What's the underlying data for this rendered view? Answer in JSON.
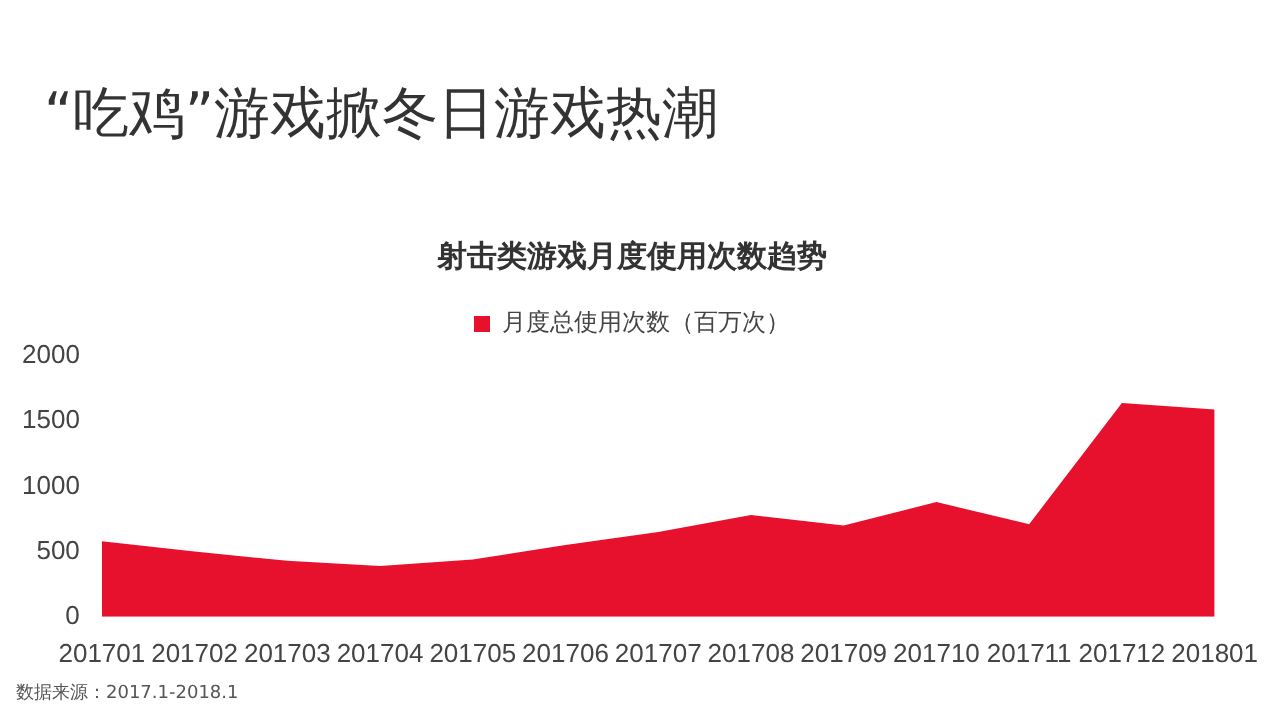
{
  "chart_data": {
    "type": "area",
    "title": "“吃鸡”游戏掀冬日游戏热潮",
    "subtitle": "射击类游戏月度使用次数趋势",
    "categories": [
      "201701",
      "201702",
      "201703",
      "201704",
      "201705",
      "201706",
      "201707",
      "201708",
      "201709",
      "201710",
      "201711",
      "201712",
      "201801"
    ],
    "series": [
      {
        "name": "月度总使用次数（百万次）",
        "color": "#e8112d",
        "values": [
          580,
          500,
          430,
          390,
          440,
          550,
          650,
          780,
          700,
          880,
          710,
          1640,
          1590
        ]
      }
    ],
    "ylim": [
      0,
      2000
    ],
    "yticks": [
      0,
      500,
      1000,
      1500,
      2000
    ],
    "grid": false,
    "legend": "top",
    "annotations": [
      "数据来源：2017.1-2018.1"
    ]
  }
}
